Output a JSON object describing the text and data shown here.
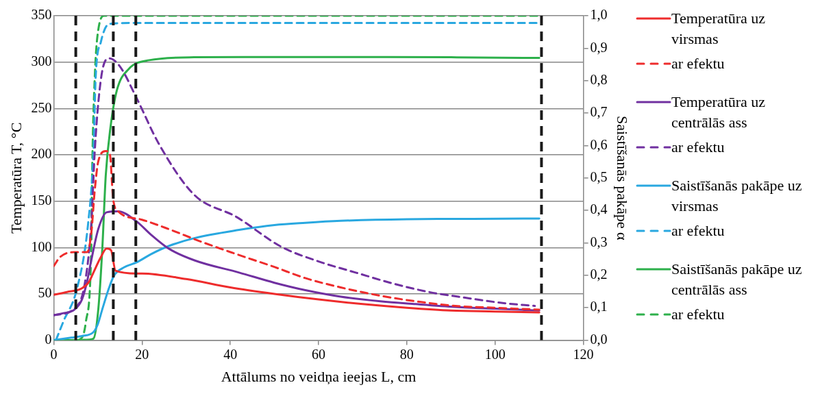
{
  "chart_data": {
    "type": "line",
    "xlabel": "Attālums no veidņa ieejas L, cm",
    "ylabel": "Temperatūra T, °C",
    "y2label": "Saistīšanās pakāpe α",
    "xlim": [
      0,
      120
    ],
    "xticks": [
      0,
      20,
      40,
      60,
      80,
      100,
      120
    ],
    "ylim": [
      0,
      350
    ],
    "yticks": [
      0,
      50,
      100,
      150,
      200,
      250,
      300,
      350
    ],
    "y2lim": [
      0,
      1
    ],
    "y2ticks": [
      {
        "value": 0,
        "label": "0,0"
      },
      {
        "value": 0.1,
        "label": "0,1"
      },
      {
        "value": 0.2,
        "label": "0,2"
      },
      {
        "value": 0.3,
        "label": "0,3"
      },
      {
        "value": 0.4,
        "label": "0,4"
      },
      {
        "value": 0.5,
        "label": "0,5"
      },
      {
        "value": 0.6,
        "label": "0,6"
      },
      {
        "value": 0.7,
        "label": "0,7"
      },
      {
        "value": 0.8,
        "label": "0,8"
      },
      {
        "value": 0.9,
        "label": "0,9"
      },
      {
        "value": 1,
        "label": "1,0"
      }
    ],
    "grid": "y",
    "legend": "right",
    "marker": "none",
    "ref_lines": [
      {
        "axis": "x",
        "value": 5,
        "color": "#1a1a1a",
        "line_style": "dashed"
      },
      {
        "axis": "x",
        "value": 13.5,
        "color": "#1a1a1a",
        "line_style": "dashed"
      },
      {
        "axis": "x",
        "value": 18.6,
        "color": "#1a1a1a",
        "line_style": "dashed"
      },
      {
        "axis": "x",
        "value": 110.5,
        "color": "#1a1a1a",
        "line_style": "dashed"
      }
    ],
    "series": [
      {
        "name": "Temperatūra uz virsmas",
        "color": "#ee2c2c",
        "line_style": "solid",
        "axis": "y",
        "x": [
          0,
          3,
          6.4,
          8,
          9,
          10.5,
          12,
          13,
          14,
          18.8,
          20,
          30,
          40,
          50,
          60,
          70,
          80,
          90,
          100,
          110
        ],
        "values": [
          49,
          52,
          56,
          63,
          73,
          88,
          99,
          97,
          75,
          72,
          72,
          66,
          57,
          50,
          44,
          39,
          35,
          32,
          31,
          30
        ]
      },
      {
        "name": "ar efektu",
        "color": "#ee2c2c",
        "line_style": "dashed",
        "axis": "y",
        "x": [
          0,
          1.5,
          4.7,
          7.6,
          8.5,
          9.3,
          10.1,
          11.8,
          12.7,
          13.5,
          14.6,
          20,
          26,
          33,
          40.7,
          50,
          57,
          65,
          74,
          82,
          91,
          100,
          110
        ],
        "values": [
          80,
          90,
          95,
          95,
          115,
          162,
          193,
          204,
          201,
          151,
          139,
          130,
          120,
          107,
          94,
          79,
          67,
          57,
          48,
          42,
          37,
          35,
          33
        ]
      },
      {
        "name": "Temperatūra uz centrālās ass",
        "color": "#7030a0",
        "line_style": "solid",
        "axis": "y",
        "x": [
          0,
          2,
          4.7,
          6.4,
          7.5,
          8.5,
          10.1,
          12,
          14.6,
          18.8,
          22,
          26,
          32,
          42,
          50,
          57,
          65,
          74,
          82,
          91,
          100,
          110
        ],
        "values": [
          27,
          29,
          33,
          44,
          62,
          86,
          120,
          138,
          139,
          128,
          114,
          99,
          86,
          73,
          62,
          54,
          47,
          42,
          39,
          36,
          34,
          32
        ]
      },
      {
        "name": "ar efektu",
        "color": "#7030a0",
        "line_style": "dashed",
        "axis": "y",
        "x": [
          0,
          4.7,
          7,
          8.5,
          9.3,
          10.1,
          11.1,
          12.6,
          14.9,
          18.8,
          23.8,
          31.8,
          41.4,
          51.5,
          60,
          68.4,
          77,
          85,
          93,
          102,
          109
        ],
        "values": [
          27,
          34,
          60,
          125,
          204,
          256,
          293,
          304,
          296,
          261,
          212,
          157,
          133,
          101,
          85,
          73,
          61,
          52,
          46,
          40,
          37
        ]
      },
      {
        "name": "Saistīšanās pakāpe uz virsmas",
        "color": "#29a8e0",
        "line_style": "solid",
        "axis": "y2",
        "x": [
          0,
          4,
          6.4,
          9,
          10,
          11,
          12.5,
          13.7,
          16,
          18.8,
          22,
          26,
          32,
          42,
          50,
          57,
          65,
          80,
          95,
          110
        ],
        "values": [
          0,
          0.008,
          0.013,
          0.025,
          0.05,
          0.095,
          0.16,
          0.2,
          0.225,
          0.24,
          0.265,
          0.29,
          0.315,
          0.34,
          0.355,
          0.362,
          0.368,
          0.373,
          0.374,
          0.375
        ]
      },
      {
        "name": "ar efektu",
        "color": "#29a8e0",
        "line_style": "dashed",
        "axis": "y2",
        "x": [
          0.5,
          2.2,
          5.3,
          7.8,
          9,
          9.5,
          10.7,
          12.6,
          20,
          40,
          60,
          80,
          100,
          110
        ],
        "values": [
          0,
          0.058,
          0.16,
          0.36,
          0.58,
          0.81,
          0.92,
          0.975,
          0.978,
          0.978,
          0.978,
          0.978,
          0.978,
          0.978
        ]
      },
      {
        "name": "Saistīšanās pakāpe uz centrālās ass",
        "color": "#2db04b",
        "line_style": "solid",
        "axis": "y2",
        "x": [
          0,
          5,
          8,
          9,
          10.1,
          11,
          11.8,
          12.9,
          14.3,
          17,
          21.6,
          31.8,
          50,
          70,
          90,
          110
        ],
        "values": [
          0,
          0,
          0.002,
          0.005,
          0.095,
          0.28,
          0.51,
          0.66,
          0.77,
          0.836,
          0.863,
          0.872,
          0.873,
          0.873,
          0.872,
          0.87
        ]
      },
      {
        "name": "ar efektu",
        "color": "#2db04b",
        "line_style": "dashed",
        "axis": "y2",
        "x": [
          0,
          5,
          6.5,
          7.3,
          8.5,
          8.7,
          9.3,
          10.1,
          11.5,
          20,
          40,
          60,
          80,
          100,
          110
        ],
        "values": [
          0,
          0,
          0.01,
          0.058,
          0.28,
          0.51,
          0.81,
          0.957,
          1,
          1,
          1,
          1,
          1,
          1,
          1
        ]
      }
    ]
  }
}
